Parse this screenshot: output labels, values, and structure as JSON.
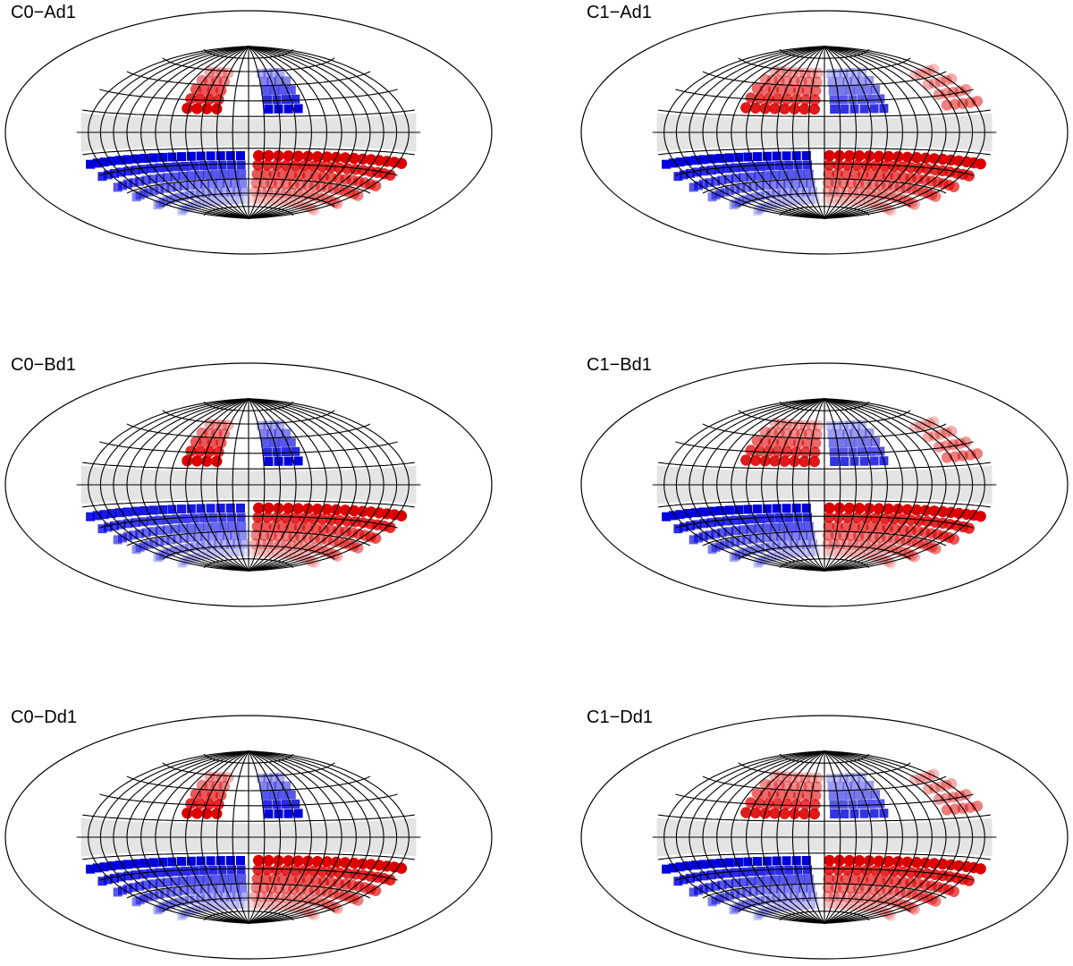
{
  "chart_data": [
    {
      "type": "scatter",
      "title": "C0−Ad1",
      "projection": "hammer-aitoff",
      "graticule": true,
      "masked_band": "galactic-plane",
      "dot_colors": {
        "positive": "#dd0000",
        "negative": "#0000dd"
      },
      "blocks": [
        {
          "sign": "+",
          "lat": [
            22,
            31,
            40,
            49,
            58
          ],
          "lon": [
            -62,
            -28
          ],
          "peak": 1.0
        },
        {
          "sign": "-",
          "lat": [
            22,
            31,
            40,
            49,
            58
          ],
          "lon": [
            20,
            58
          ],
          "peak": 1.0
        },
        {
          "sign": "-",
          "lat": [
            -22,
            -31,
            -40,
            -49,
            -58,
            -67
          ],
          "lon": [
            -178,
            0
          ],
          "peak": 1.0
        },
        {
          "sign": "+",
          "lat": [
            -22,
            -31,
            -40,
            -49,
            -58,
            -67
          ],
          "lon": [
            10,
            178
          ],
          "peak": 1.0
        }
      ]
    },
    {
      "type": "scatter",
      "title": "C1−Ad1",
      "projection": "hammer-aitoff",
      "graticule": true,
      "masked_band": "galactic-plane",
      "dot_colors": {
        "positive": "#dd0000",
        "negative": "#0000dd"
      },
      "blocks": [
        {
          "sign": "+",
          "lat": [
            22,
            31,
            40,
            49,
            58
          ],
          "lon": [
            -80,
            -10
          ],
          "peak": 0.9
        },
        {
          "sign": "-",
          "lat": [
            22,
            31,
            40,
            49,
            58
          ],
          "lon": [
            10,
            60
          ],
          "peak": 0.8
        },
        {
          "sign": "+",
          "lat": [
            22,
            31,
            40,
            49
          ],
          "lon": [
            130,
            178
          ],
          "peak": 0.5
        },
        {
          "sign": "-",
          "lat": [
            -22,
            -31,
            -40,
            -49,
            -58,
            -67
          ],
          "lon": [
            -178,
            -10
          ],
          "peak": 1.0
        },
        {
          "sign": "+",
          "lat": [
            -22,
            -31,
            -40,
            -49,
            -58,
            -67
          ],
          "lon": [
            5,
            178
          ],
          "peak": 1.0
        }
      ]
    },
    {
      "type": "scatter",
      "title": "C0−Bd1",
      "projection": "hammer-aitoff",
      "graticule": true,
      "masked_band": "galactic-plane",
      "dot_colors": {
        "positive": "#dd0000",
        "negative": "#0000dd"
      },
      "blocks": [
        {
          "sign": "+",
          "lat": [
            22,
            31,
            40,
            49,
            58
          ],
          "lon": [
            -62,
            -28
          ],
          "peak": 1.0
        },
        {
          "sign": "-",
          "lat": [
            22,
            31,
            40,
            49,
            58
          ],
          "lon": [
            20,
            58
          ],
          "peak": 1.0
        },
        {
          "sign": "-",
          "lat": [
            -22,
            -31,
            -40,
            -49,
            -58,
            -67
          ],
          "lon": [
            -178,
            0
          ],
          "peak": 0.9
        },
        {
          "sign": "+",
          "lat": [
            -22,
            -31,
            -40,
            -49,
            -58,
            -67
          ],
          "lon": [
            10,
            178
          ],
          "peak": 1.0
        }
      ]
    },
    {
      "type": "scatter",
      "title": "C1−Bd1",
      "projection": "hammer-aitoff",
      "graticule": true,
      "masked_band": "galactic-plane",
      "dot_colors": {
        "positive": "#dd0000",
        "negative": "#0000dd"
      },
      "blocks": [
        {
          "sign": "+",
          "lat": [
            22,
            31,
            40,
            49,
            58
          ],
          "lon": [
            -80,
            -10
          ],
          "peak": 0.9
        },
        {
          "sign": "-",
          "lat": [
            22,
            31,
            40,
            49,
            58
          ],
          "lon": [
            10,
            60
          ],
          "peak": 0.8
        },
        {
          "sign": "+",
          "lat": [
            22,
            31,
            40,
            49
          ],
          "lon": [
            130,
            178
          ],
          "peak": 0.5
        },
        {
          "sign": "-",
          "lat": [
            -22,
            -31,
            -40,
            -49,
            -58,
            -67
          ],
          "lon": [
            -178,
            -10
          ],
          "peak": 1.0
        },
        {
          "sign": "+",
          "lat": [
            -22,
            -31,
            -40,
            -49,
            -58,
            -67
          ],
          "lon": [
            5,
            178
          ],
          "peak": 1.0
        }
      ]
    },
    {
      "type": "scatter",
      "title": "C0−Dd1",
      "projection": "hammer-aitoff",
      "graticule": true,
      "masked_band": "galactic-plane",
      "dot_colors": {
        "positive": "#dd0000",
        "negative": "#0000dd"
      },
      "blocks": [
        {
          "sign": "+",
          "lat": [
            22,
            31,
            40,
            49,
            58
          ],
          "lon": [
            -62,
            -28
          ],
          "peak": 1.0
        },
        {
          "sign": "-",
          "lat": [
            22,
            31,
            40,
            49,
            58
          ],
          "lon": [
            20,
            58
          ],
          "peak": 1.0
        },
        {
          "sign": "-",
          "lat": [
            -22,
            -31,
            -40,
            -49,
            -58,
            -67
          ],
          "lon": [
            -178,
            0
          ],
          "peak": 1.0
        },
        {
          "sign": "+",
          "lat": [
            -22,
            -31,
            -40,
            -49,
            -58,
            -67
          ],
          "lon": [
            10,
            178
          ],
          "peak": 1.0
        }
      ]
    },
    {
      "type": "scatter",
      "title": "C1−Dd1",
      "projection": "hammer-aitoff",
      "graticule": true,
      "masked_band": "galactic-plane",
      "dot_colors": {
        "positive": "#dd0000",
        "negative": "#0000dd"
      },
      "blocks": [
        {
          "sign": "+",
          "lat": [
            22,
            31,
            40,
            49,
            58
          ],
          "lon": [
            -80,
            -10
          ],
          "peak": 0.9
        },
        {
          "sign": "-",
          "lat": [
            22,
            31,
            40,
            49,
            58
          ],
          "lon": [
            10,
            60
          ],
          "peak": 0.8
        },
        {
          "sign": "+",
          "lat": [
            22,
            31,
            40,
            49
          ],
          "lon": [
            130,
            178
          ],
          "peak": 0.5
        },
        {
          "sign": "-",
          "lat": [
            -22,
            -31,
            -40,
            -49,
            -58,
            -67
          ],
          "lon": [
            -178,
            -10
          ],
          "peak": 1.0
        },
        {
          "sign": "+",
          "lat": [
            -22,
            -31,
            -40,
            -49,
            -58,
            -67
          ],
          "lon": [
            5,
            178
          ],
          "peak": 1.0
        }
      ]
    }
  ]
}
